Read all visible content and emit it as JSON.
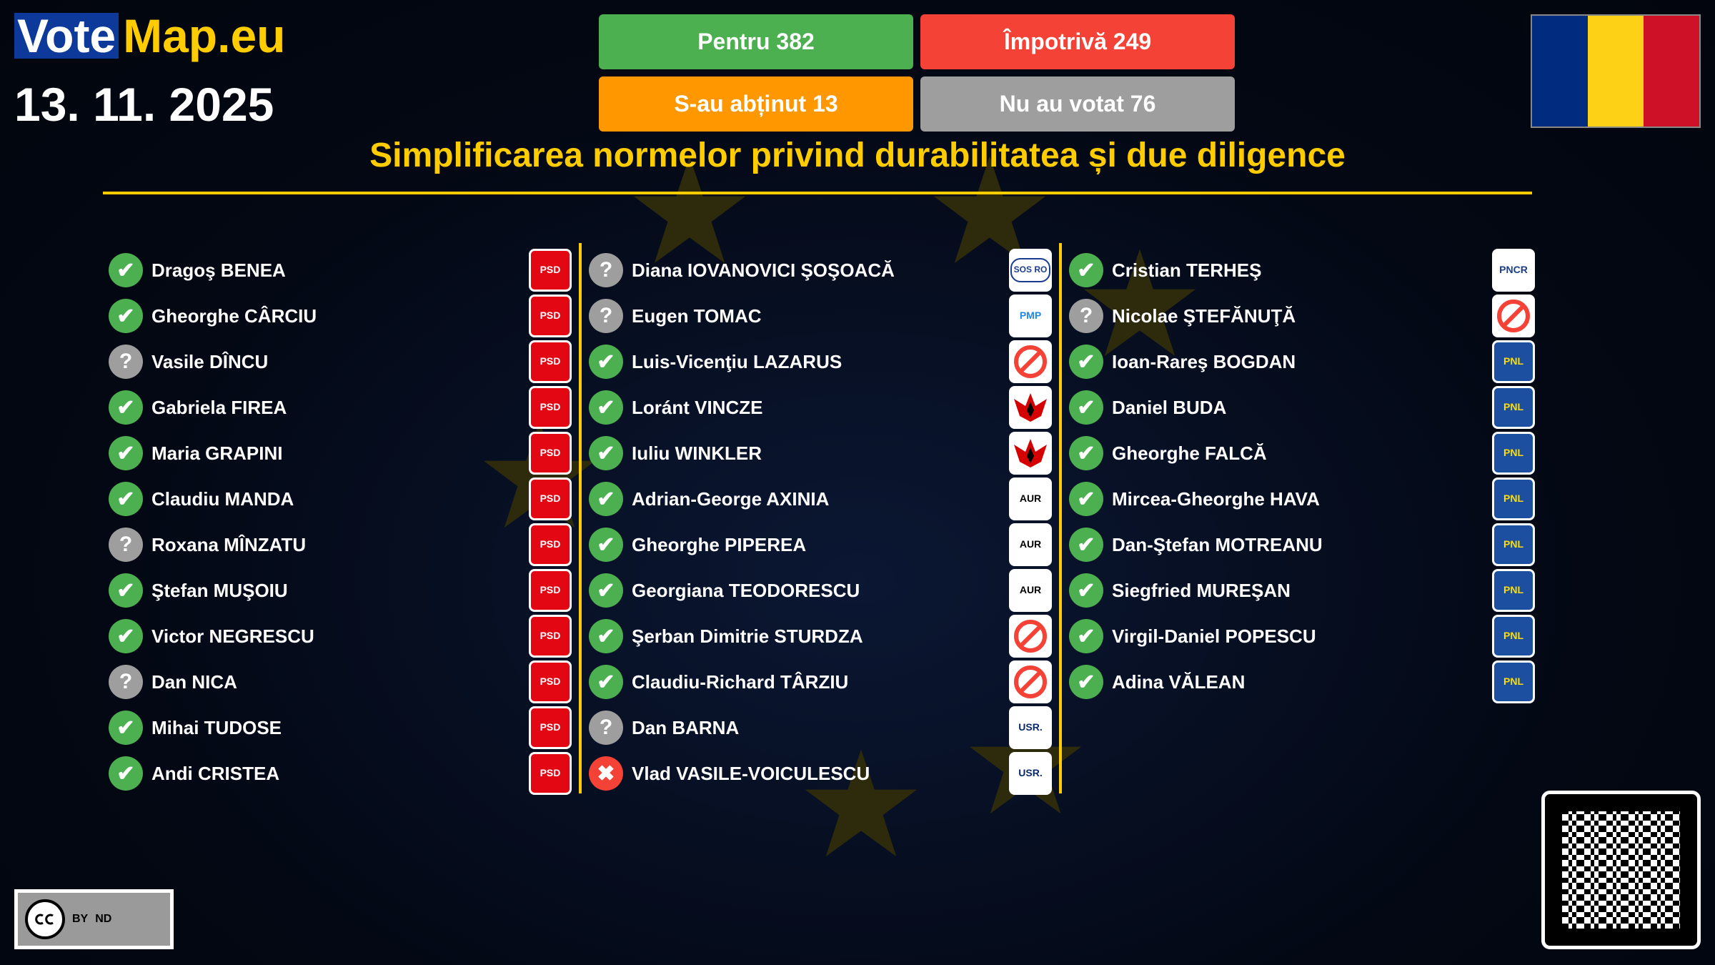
{
  "brand": {
    "vote": "Vote",
    "map": "Map.eu"
  },
  "date": "13. 11. 2025",
  "tallies": {
    "for": "Pentru 382",
    "against": "Împotrivă 249",
    "abstain": "S-au abținut 13",
    "absent": "Nu au votat 76"
  },
  "colors": {
    "for": "#4caf50",
    "against": "#f44336",
    "abstain": "#ff9800",
    "absent": "#9e9e9e",
    "accent": "#ffcc00"
  },
  "title": "Simplificarea normelor privind durabilitatea și due diligence",
  "flag": [
    "#002b7f",
    "#fcd116",
    "#ce1126"
  ],
  "columns": [
    [
      {
        "name": "Dragoş BENEA",
        "vote": "for",
        "party": "PSD"
      },
      {
        "name": "Gheorghe CÂRCIU",
        "vote": "for",
        "party": "PSD"
      },
      {
        "name": "Vasile DÎNCU",
        "vote": "absent",
        "party": "PSD"
      },
      {
        "name": "Gabriela FIREA",
        "vote": "for",
        "party": "PSD"
      },
      {
        "name": "Maria GRAPINI",
        "vote": "for",
        "party": "PSD"
      },
      {
        "name": "Claudiu MANDA",
        "vote": "for",
        "party": "PSD"
      },
      {
        "name": "Roxana MÎNZATU",
        "vote": "absent",
        "party": "PSD"
      },
      {
        "name": "Ştefan MUŞOIU",
        "vote": "for",
        "party": "PSD"
      },
      {
        "name": "Victor NEGRESCU",
        "vote": "for",
        "party": "PSD"
      },
      {
        "name": "Dan NICA",
        "vote": "absent",
        "party": "PSD"
      },
      {
        "name": "Mihai TUDOSE",
        "vote": "for",
        "party": "PSD"
      },
      {
        "name": "Andi CRISTEA",
        "vote": "for",
        "party": "PSD"
      }
    ],
    [
      {
        "name": "Diana IOVANOVICI ŞOŞOACĂ",
        "vote": "absent",
        "party": "SOS RO"
      },
      {
        "name": "Eugen TOMAC",
        "vote": "absent",
        "party": "PMP"
      },
      {
        "name": "Luis-Vicenţiu LAZARUS",
        "vote": "for",
        "party": "none"
      },
      {
        "name": "Loránt VINCZE",
        "vote": "for",
        "party": "UDMR"
      },
      {
        "name": "Iuliu WINKLER",
        "vote": "for",
        "party": "UDMR"
      },
      {
        "name": "Adrian-George AXINIA",
        "vote": "for",
        "party": "AUR"
      },
      {
        "name": "Gheorghe PIPEREA",
        "vote": "for",
        "party": "AUR"
      },
      {
        "name": "Georgiana TEODORESCU",
        "vote": "for",
        "party": "AUR"
      },
      {
        "name": "Şerban Dimitrie STURDZA",
        "vote": "for",
        "party": "none"
      },
      {
        "name": "Claudiu-Richard TÂRZIU",
        "vote": "for",
        "party": "none"
      },
      {
        "name": "Dan BARNA",
        "vote": "absent",
        "party": "USR."
      },
      {
        "name": "Vlad VASILE-VOICULESCU",
        "vote": "against",
        "party": "USR."
      }
    ],
    [
      {
        "name": "Cristian TERHEŞ",
        "vote": "for",
        "party": "PNCR"
      },
      {
        "name": "Nicolae ŞTEFĂNUŢĂ",
        "vote": "absent",
        "party": "none"
      },
      {
        "name": "Ioan-Rareş BOGDAN",
        "vote": "for",
        "party": "PNL"
      },
      {
        "name": "Daniel BUDA",
        "vote": "for",
        "party": "PNL"
      },
      {
        "name": "Gheorghe FALCĂ",
        "vote": "for",
        "party": "PNL"
      },
      {
        "name": "Mircea-Gheorghe HAVA",
        "vote": "for",
        "party": "PNL"
      },
      {
        "name": "Dan-Ştefan MOTREANU",
        "vote": "for",
        "party": "PNL"
      },
      {
        "name": "Siegfried MUREŞAN",
        "vote": "for",
        "party": "PNL"
      },
      {
        "name": "Virgil-Daniel POPESCU",
        "vote": "for",
        "party": "PNL"
      },
      {
        "name": "Adina VĂLEAN",
        "vote": "for",
        "party": "PNL"
      }
    ]
  ],
  "license": {
    "by": "BY",
    "nd": "ND"
  }
}
